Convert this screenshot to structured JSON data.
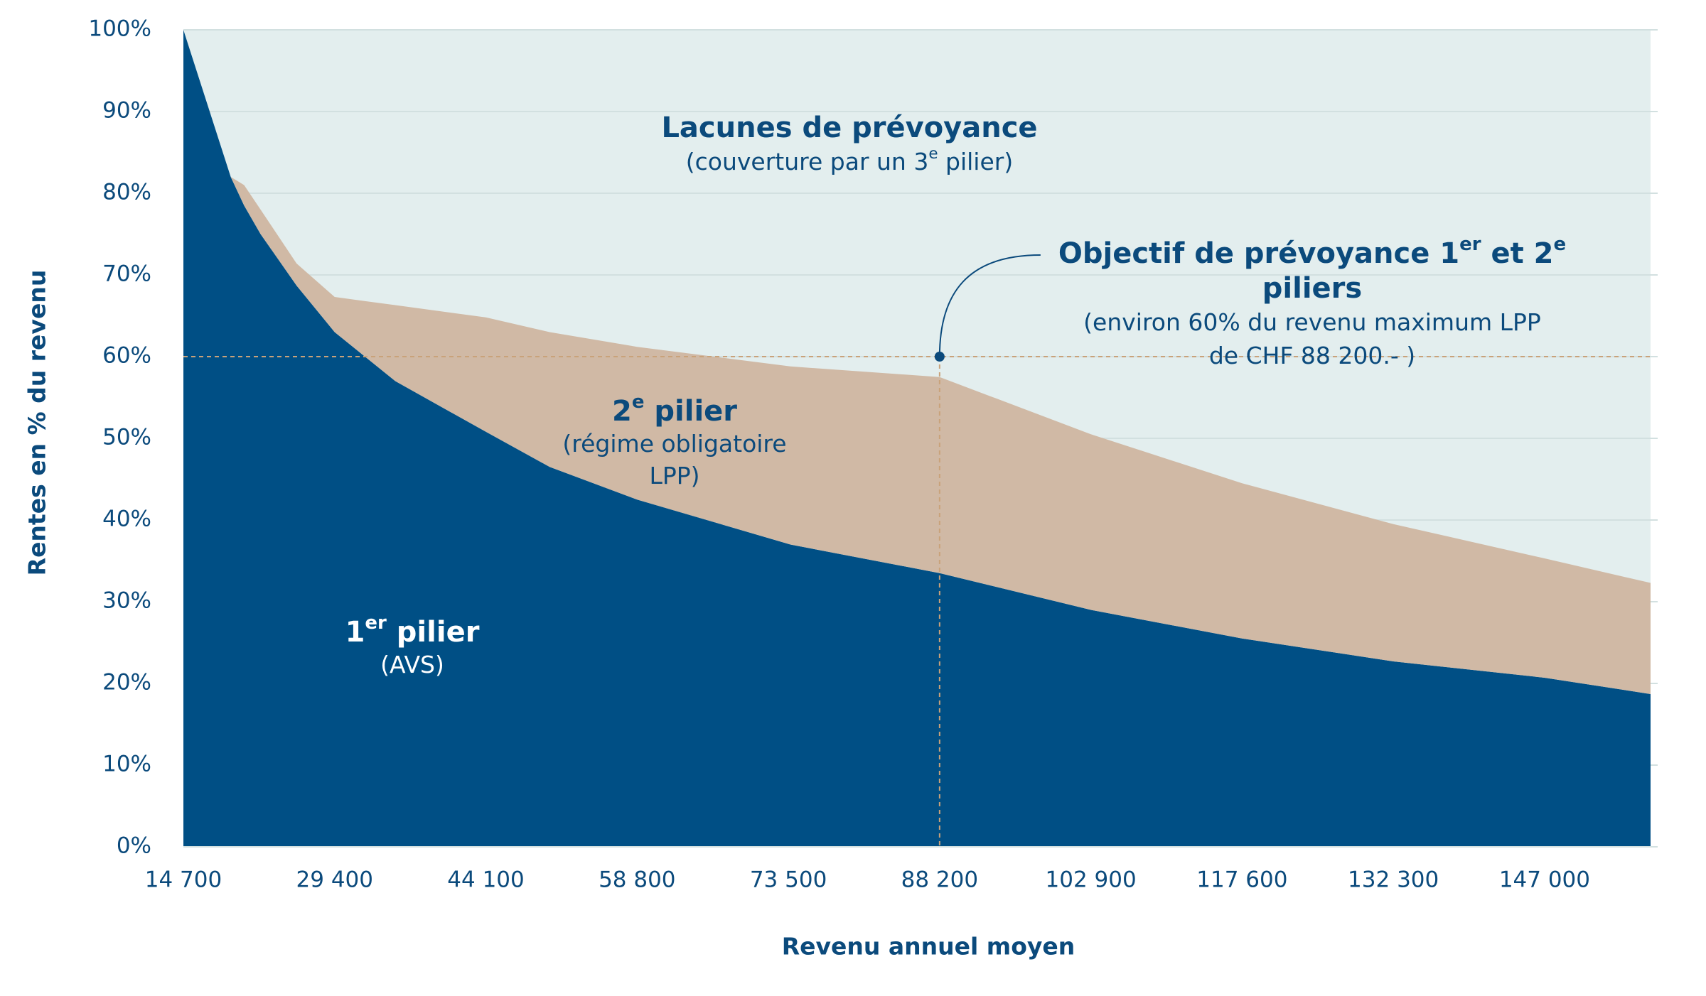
{
  "chart_data": {
    "type": "stacked_area",
    "y_label": "Rentes en % du revenu",
    "x_label": "Revenu annuel moyen",
    "x": [
      14700,
      19300,
      20600,
      22200,
      25700,
      29400,
      35300,
      44100,
      50300,
      58800,
      73700,
      88200,
      102900,
      117600,
      132300,
      147000,
      157300
    ],
    "series": [
      {
        "name": "1er pilier (AVS)",
        "color": "#004f85",
        "values": [
          100,
          82,
          78.5,
          75,
          68.7,
          63,
          57,
          50.8,
          46.5,
          42.5,
          37,
          33.5,
          29,
          25.5,
          22.7,
          20.7,
          18.7
        ]
      },
      {
        "name": "2e pilier (LPP)",
        "color": "#d0b9a5",
        "values": [
          0,
          0,
          2.5,
          3,
          2.7,
          4.3,
          9.3,
          14,
          16.5,
          18.7,
          21.8,
          24,
          21.5,
          19,
          16.8,
          14.6,
          13.6
        ]
      }
    ],
    "plot_background": "#e3eeee",
    "grid": true,
    "xlim": [
      14700,
      157300
    ],
    "xticks": [
      {
        "value": 14700,
        "label": "14 700"
      },
      {
        "value": 29400,
        "label": "29 400"
      },
      {
        "value": 44100,
        "label": "44 100"
      },
      {
        "value": 58800,
        "label": "58 800"
      },
      {
        "value": 73500,
        "label": "73 500"
      },
      {
        "value": 88200,
        "label": "88 200"
      },
      {
        "value": 102900,
        "label": "102 900"
      },
      {
        "value": 117600,
        "label": "117 600"
      },
      {
        "value": 132300,
        "label": "132 300"
      },
      {
        "value": 147000,
        "label": "147 000"
      }
    ],
    "ylim": [
      0,
      100
    ],
    "yticks": [
      {
        "value": 0,
        "label": "0%"
      },
      {
        "value": 10,
        "label": "10%"
      },
      {
        "value": 20,
        "label": "20%"
      },
      {
        "value": 30,
        "label": "30%"
      },
      {
        "value": 40,
        "label": "40%"
      },
      {
        "value": 50,
        "label": "50%"
      },
      {
        "value": 60,
        "label": "60%"
      },
      {
        "value": 70,
        "label": "70%"
      },
      {
        "value": 80,
        "label": "80%"
      },
      {
        "value": 90,
        "label": "90%"
      },
      {
        "value": 100,
        "label": "100%"
      }
    ],
    "target": {
      "x": 88200,
      "y": 60,
      "color": "#c9a27a"
    },
    "annotations": {
      "gap": {
        "title": [
          "Lacunes de prévoyance"
        ],
        "lines": [
          [
            "(couverture par un 3",
            "e",
            " pilier)"
          ]
        ]
      },
      "objective": {
        "title": [
          "Objectif de prévoyance 1",
          "er",
          " et 2",
          "e"
        ],
        "title2": "piliers",
        "lines": [
          [
            "(environ 60% du revenu maximum LPP"
          ],
          [
            "de CHF 88 200.- )"
          ]
        ]
      },
      "second": {
        "title": [
          "2",
          "e",
          " pilier"
        ],
        "lines": [
          [
            "(régime obligatoire"
          ],
          [
            "LPP)"
          ]
        ]
      },
      "first": {
        "title": [
          "1",
          "er",
          " pilier"
        ],
        "lines": [
          [
            "(AVS)"
          ]
        ]
      }
    }
  }
}
